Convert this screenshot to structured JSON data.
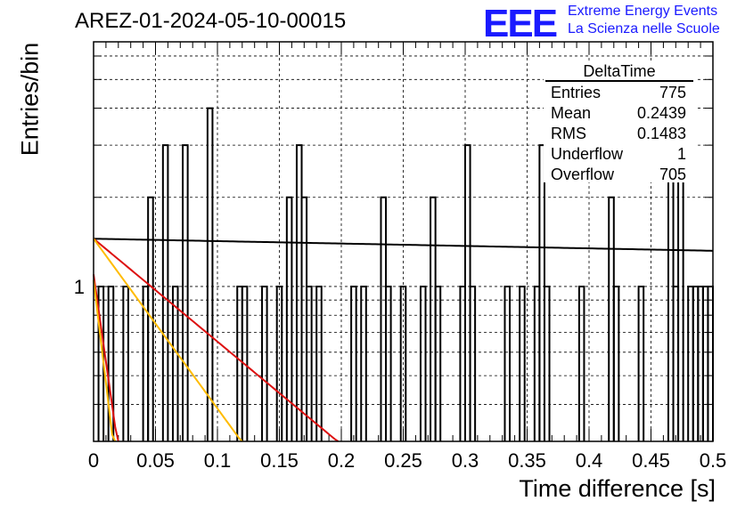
{
  "header": {
    "run_title": "AREZ-01-2024-05-10-00015",
    "logo_text": "EEE",
    "logo_line1": "Extreme Energy Events",
    "logo_line2": "La Scienza nelle Scuole"
  },
  "stats_box": {
    "title": "DeltaTime",
    "rows": [
      {
        "label": "Entries",
        "value": "775"
      },
      {
        "label": "Mean",
        "value": "0.2439"
      },
      {
        "label": "RMS",
        "value": "0.1483"
      },
      {
        "label": "Underflow",
        "value": "1"
      },
      {
        "label": "Overflow",
        "value": "705"
      }
    ]
  },
  "colors": {
    "histogram": "#000000",
    "fit_black": "#000000",
    "fit_red": "#dd1111",
    "fit_orange": "#ffbb00",
    "logo_blue": "#1a1aff"
  },
  "chart_data": {
    "type": "histogram",
    "xlabel": "Time difference [s]",
    "ylabel": "Entries/bin",
    "xlim": [
      0,
      0.5
    ],
    "ylim": [
      0.3,
      6.7
    ],
    "log_y": true,
    "grid": true,
    "x_ticks": [
      "0",
      "0.05",
      "0.1",
      "0.15",
      "0.2",
      "0.25",
      "0.3",
      "0.35",
      "0.4",
      "0.45",
      "0.5"
    ],
    "y_ticks": [
      "1"
    ],
    "bin_width": 0.004,
    "bins": [
      {
        "x0": 0.004,
        "count": 1
      },
      {
        "x0": 0.012,
        "count": 1
      },
      {
        "x0": 0.024,
        "count": 1
      },
      {
        "x0": 0.04,
        "count": 1
      },
      {
        "x0": 0.044,
        "count": 2
      },
      {
        "x0": 0.056,
        "count": 3
      },
      {
        "x0": 0.064,
        "count": 1
      },
      {
        "x0": 0.072,
        "count": 3
      },
      {
        "x0": 0.092,
        "count": 4
      },
      {
        "x0": 0.116,
        "count": 1
      },
      {
        "x0": 0.12,
        "count": 1
      },
      {
        "x0": 0.136,
        "count": 1
      },
      {
        "x0": 0.148,
        "count": 1
      },
      {
        "x0": 0.156,
        "count": 2
      },
      {
        "x0": 0.164,
        "count": 3
      },
      {
        "x0": 0.168,
        "count": 2
      },
      {
        "x0": 0.172,
        "count": 1
      },
      {
        "x0": 0.18,
        "count": 1
      },
      {
        "x0": 0.208,
        "count": 1
      },
      {
        "x0": 0.216,
        "count": 1
      },
      {
        "x0": 0.232,
        "count": 2
      },
      {
        "x0": 0.236,
        "count": 1
      },
      {
        "x0": 0.248,
        "count": 1
      },
      {
        "x0": 0.264,
        "count": 1
      },
      {
        "x0": 0.272,
        "count": 2
      },
      {
        "x0": 0.276,
        "count": 1
      },
      {
        "x0": 0.296,
        "count": 1
      },
      {
        "x0": 0.3,
        "count": 3
      },
      {
        "x0": 0.304,
        "count": 1
      },
      {
        "x0": 0.332,
        "count": 1
      },
      {
        "x0": 0.344,
        "count": 1
      },
      {
        "x0": 0.356,
        "count": 1
      },
      {
        "x0": 0.36,
        "count": 3
      },
      {
        "x0": 0.364,
        "count": 1
      },
      {
        "x0": 0.392,
        "count": 1
      },
      {
        "x0": 0.416,
        "count": 2
      },
      {
        "x0": 0.42,
        "count": 1
      },
      {
        "x0": 0.44,
        "count": 1
      },
      {
        "x0": 0.464,
        "count": 3
      },
      {
        "x0": 0.468,
        "count": 1
      },
      {
        "x0": 0.472,
        "count": 4
      },
      {
        "x0": 0.48,
        "count": 1
      },
      {
        "x0": 0.484,
        "count": 1
      },
      {
        "x0": 0.488,
        "count": 1
      },
      {
        "x0": 0.492,
        "count": 1
      },
      {
        "x0": 0.496,
        "count": 1
      }
    ],
    "series": [
      {
        "type": "exp_fit",
        "color": "black",
        "y_at_0": 1.45,
        "y_at_0.5": 1.32
      },
      {
        "type": "exp_fit",
        "color": "red",
        "y_at_0": 1.45,
        "slope_per_s": -8.0
      },
      {
        "type": "exp_fit",
        "color": "orange",
        "y_at_0": 1.45,
        "slope_per_s": -13.2
      },
      {
        "type": "exp_fit",
        "color": "red",
        "y_at_0": 1.1,
        "slope_per_s": -68.0
      },
      {
        "type": "exp_fit",
        "color": "orange",
        "y_at_0": 1.05,
        "slope_per_s": -80.0
      }
    ]
  }
}
